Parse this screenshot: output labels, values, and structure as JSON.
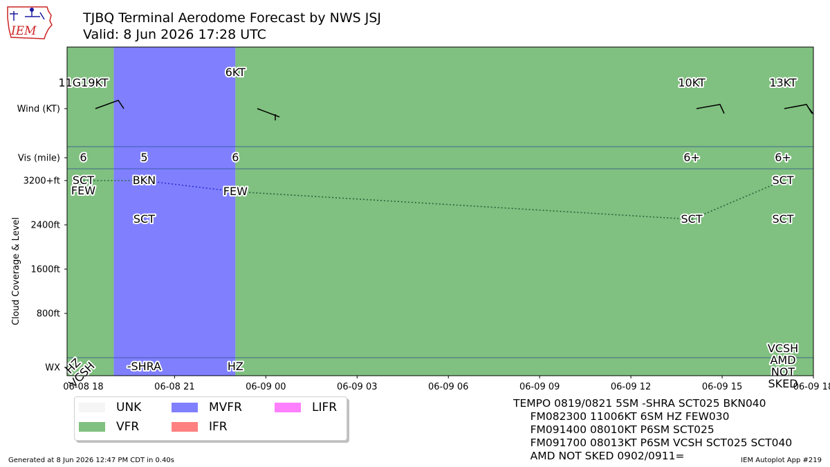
{
  "header": {
    "title": "TJBQ Terminal Aerodome Forecast by NWS JSJ",
    "subtitle": "Valid: 8 Jun 2026 17:28 UTC",
    "logo_text": "IEM"
  },
  "colors": {
    "UNK": "#f5f5f5",
    "VFR": "#80c080",
    "MVFR": "#8080ff",
    "IFR": "#ff8080",
    "LIFR": "#ff80ff",
    "cloud_line": "#22663b",
    "mvfr_cloud_line": "#2a2ad4"
  },
  "legend": [
    {
      "label": "UNK",
      "color": "#f5f5f5"
    },
    {
      "label": "VFR",
      "color": "#80c080"
    },
    {
      "label": "MVFR",
      "color": "#8080ff"
    },
    {
      "label": "IFR",
      "color": "#ff8080"
    },
    {
      "label": "LIFR",
      "color": "#ff80ff"
    }
  ],
  "raw_taf": [
    "TEMPO 0819/0821 5SM -SHRA SCT025 BKN040",
    "     FM082300 11006KT 6SM HZ FEW030",
    "     FM091400 08010KT P6SM SCT025",
    "     FM091700 08013KT P6SM VCSH SCT025 SCT040",
    "     AMD NOT SKED 0902/0911="
  ],
  "footer": {
    "left": "Generated at 8 Jun 2026 12:47 PM CDT in 0.40s",
    "right": "IEM Autoplot App #219"
  },
  "chart_data": {
    "type": "timeline",
    "x_ticks": [
      "06-08 18",
      "06-08 21",
      "06-09 00",
      "06-09 03",
      "06-09 06",
      "06-09 09",
      "06-09 12",
      "06-09 15",
      "06-09 18"
    ],
    "y_rows": [
      {
        "label": "Wind (KT)"
      },
      {
        "label": "Vis (mile)"
      },
      {
        "label": "3200+ft"
      },
      {
        "label": "2400ft"
      },
      {
        "label": "1600ft"
      },
      {
        "label": "800ft"
      },
      {
        "label": "WX"
      }
    ],
    "ylabel": "Cloud Coverage & Level",
    "category_bands": [
      {
        "category": "VFR",
        "start": "06-08 17:28",
        "end": "06-08 19:00"
      },
      {
        "category": "MVFR",
        "start": "06-08 19:00",
        "end": "06-08 23:00"
      },
      {
        "category": "VFR",
        "start": "06-08 23:00",
        "end": "06-09 18:00"
      }
    ],
    "forecasts": [
      {
        "time": "06-08 18:00",
        "wind_label": "11G19KT",
        "vis": "6",
        "clouds": [
          {
            "cover": "SCT",
            "level": "3200+ft"
          },
          {
            "cover": "FEW",
            "level": "3000"
          }
        ],
        "wx": "HZ\nVCSH"
      },
      {
        "time": "06-08 20:00",
        "wind_label": "",
        "vis": "5",
        "clouds": [
          {
            "cover": "BKN",
            "level": "3200+ft"
          },
          {
            "cover": "SCT",
            "level": "2500"
          }
        ],
        "wx": "-SHRA"
      },
      {
        "time": "06-08 23:00",
        "wind_label": "6KT",
        "vis": "6",
        "clouds": [
          {
            "cover": "FEW",
            "level": "3000"
          }
        ],
        "wx": "HZ"
      },
      {
        "time": "06-09 14:00",
        "wind_label": "10KT",
        "vis": "6+",
        "clouds": [
          {
            "cover": "SCT",
            "level": "2500"
          }
        ],
        "wx": ""
      },
      {
        "time": "06-09 17:00",
        "wind_label": "13KT",
        "vis": "6+",
        "clouds": [
          {
            "cover": "SCT",
            "level": "3200+ft"
          },
          {
            "cover": "SCT",
            "level": "2500"
          }
        ],
        "wx": "VCSH\nAMD\nNOT\nSKED"
      }
    ]
  }
}
